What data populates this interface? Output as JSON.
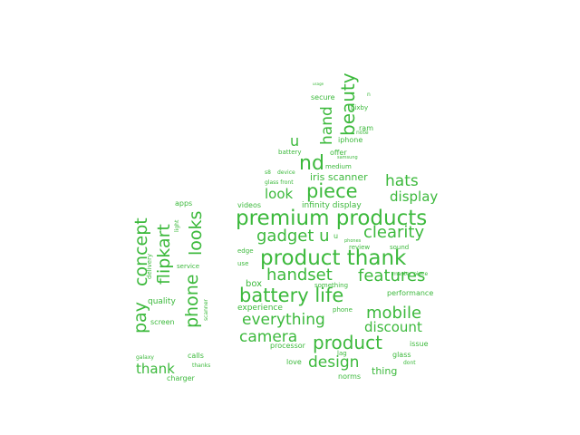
{
  "color": "#3cb93c",
  "words": [
    {
      "text": "premium products",
      "weight": 1.0
    },
    {
      "text": "product thank",
      "weight": 1.0
    },
    {
      "text": "battery life",
      "weight": 0.94
    },
    {
      "text": "piece",
      "weight": 0.92
    },
    {
      "text": "nd",
      "weight": 0.92
    },
    {
      "text": "product",
      "weight": 0.86
    },
    {
      "text": "beauty",
      "weight": 0.86
    },
    {
      "text": "looks",
      "weight": 0.82
    },
    {
      "text": "concept",
      "weight": 0.82
    },
    {
      "text": "flipkart",
      "weight": 0.82
    },
    {
      "text": "phone",
      "weight": 0.82
    },
    {
      "text": "pay",
      "weight": 0.82
    },
    {
      "text": "gadget u",
      "weight": 0.78
    },
    {
      "text": "clearity",
      "weight": 0.78
    },
    {
      "text": "handset",
      "weight": 0.78
    },
    {
      "text": "features",
      "weight": 0.78
    },
    {
      "text": "mobile",
      "weight": 0.78
    },
    {
      "text": "everything",
      "weight": 0.76
    },
    {
      "text": "design",
      "weight": 0.76
    },
    {
      "text": "camera",
      "weight": 0.76
    },
    {
      "text": "hats",
      "weight": 0.74
    },
    {
      "text": "hand",
      "weight": 0.74
    },
    {
      "text": "display",
      "weight": 0.66
    },
    {
      "text": "look",
      "weight": 0.66
    },
    {
      "text": "discount",
      "weight": 0.66
    },
    {
      "text": "thank",
      "weight": 0.66
    },
    {
      "text": "u",
      "weight": 0.7
    },
    {
      "text": "iris scanner",
      "weight": 0.54
    },
    {
      "text": "thing",
      "weight": 0.5
    },
    {
      "text": "box",
      "weight": 0.48
    },
    {
      "text": "experience",
      "weight": 0.42
    },
    {
      "text": "quality",
      "weight": 0.42
    },
    {
      "text": "infinity display",
      "weight": 0.4
    },
    {
      "text": "videos",
      "weight": 0.38
    },
    {
      "text": "u",
      "weight": 0.38
    },
    {
      "text": "screen",
      "weight": 0.38
    },
    {
      "text": "performance",
      "weight": 0.38
    },
    {
      "text": "processor",
      "weight": 0.36
    },
    {
      "text": "love",
      "weight": 0.36
    },
    {
      "text": "norms",
      "weight": 0.36
    },
    {
      "text": "calls",
      "weight": 0.36
    },
    {
      "text": "charger",
      "weight": 0.36
    },
    {
      "text": "issue",
      "weight": 0.36
    },
    {
      "text": "glass",
      "weight": 0.36
    },
    {
      "text": "offer",
      "weight": 0.36
    },
    {
      "text": "iphone",
      "weight": 0.36
    },
    {
      "text": "secure",
      "weight": 0.36
    },
    {
      "text": "ram",
      "weight": 0.36
    },
    {
      "text": "apps",
      "weight": 0.36
    },
    {
      "text": "service",
      "weight": 0.34
    },
    {
      "text": "phone",
      "weight": 0.34
    },
    {
      "text": "sound",
      "weight": 0.34
    },
    {
      "text": "review",
      "weight": 0.34
    },
    {
      "text": "battery",
      "weight": 0.34
    },
    {
      "text": "medium",
      "weight": 0.34
    },
    {
      "text": "lag",
      "weight": 0.34
    },
    {
      "text": "bixby",
      "weight": 0.32
    },
    {
      "text": "something",
      "weight": 0.3
    },
    {
      "text": "delivery",
      "weight": 0.3
    },
    {
      "text": "edge",
      "weight": 0.3
    },
    {
      "text": "use",
      "weight": 0.3
    },
    {
      "text": "scanner",
      "weight": 0.28
    },
    {
      "text": "light",
      "weight": 0.28
    },
    {
      "text": "glass front",
      "weight": 0.28
    },
    {
      "text": "device",
      "weight": 0.26
    },
    {
      "text": "s8",
      "weight": 0.26
    },
    {
      "text": "galaxy",
      "weight": 0.26
    },
    {
      "text": "thanks",
      "weight": 0.26
    },
    {
      "text": "dont",
      "weight": 0.26
    },
    {
      "text": "master piece",
      "weight": 0.26
    },
    {
      "text": "note",
      "weight": 0.26
    },
    {
      "text": "samsung",
      "weight": 0.26
    },
    {
      "text": "n",
      "weight": 0.26
    },
    {
      "text": "phones",
      "weight": 0.22
    },
    {
      "text": "usage",
      "weight": 0.2
    }
  ]
}
